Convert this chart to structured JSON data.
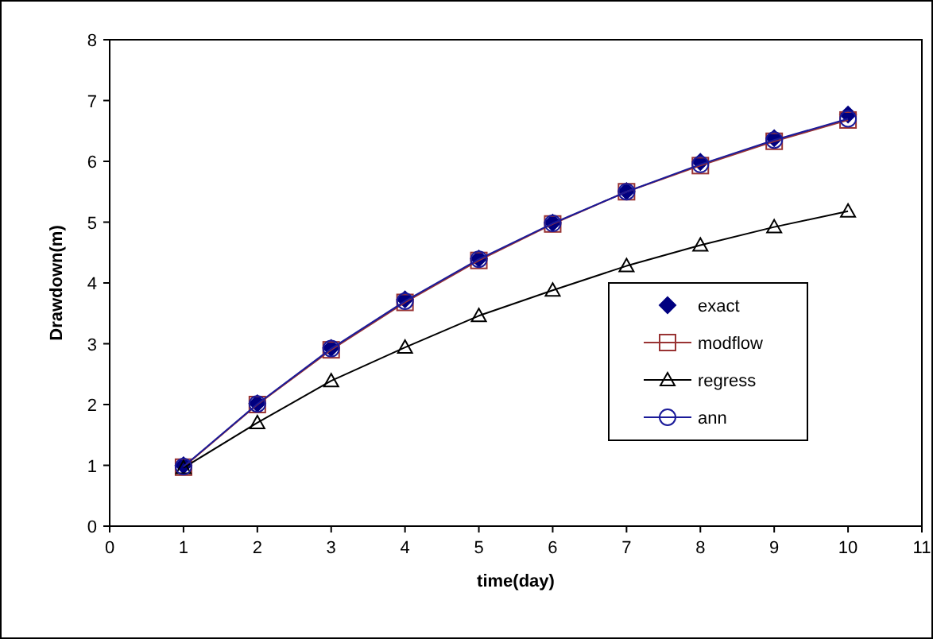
{
  "chart_data": {
    "type": "line",
    "xlabel": "time(day)",
    "ylabel": "Drawdown(m)",
    "x": [
      1,
      2,
      3,
      4,
      5,
      6,
      7,
      8,
      9,
      10
    ],
    "xlim": [
      0,
      11
    ],
    "xticks": [
      0,
      1,
      2,
      3,
      4,
      5,
      6,
      7,
      8,
      9,
      10,
      11
    ],
    "ylim": [
      0,
      8
    ],
    "yticks": [
      0,
      1,
      2,
      3,
      4,
      5,
      6,
      7,
      8
    ],
    "grid": false,
    "legend": "right",
    "series": [
      {
        "name": "exact",
        "type": "scatter",
        "marker": "diamond",
        "color": "#000080",
        "values": [
          1.0,
          2.02,
          2.93,
          3.73,
          4.4,
          4.99,
          5.51,
          5.99,
          6.38,
          6.77
        ]
      },
      {
        "name": "modflow",
        "marker": "square",
        "color": "#993333",
        "values": [
          0.97,
          2.0,
          2.9,
          3.68,
          4.37,
          4.97,
          5.5,
          5.93,
          6.33,
          6.68
        ]
      },
      {
        "name": "regress",
        "marker": "triangle",
        "color": "#000000",
        "values": [
          0.96,
          1.7,
          2.39,
          2.94,
          3.46,
          3.88,
          4.28,
          4.62,
          4.92,
          5.18
        ]
      },
      {
        "name": "ann",
        "marker": "circle",
        "color": "#1a1a99",
        "values": [
          0.98,
          2.01,
          2.92,
          3.7,
          4.39,
          4.98,
          5.5,
          5.95,
          6.35,
          6.7
        ]
      }
    ]
  }
}
